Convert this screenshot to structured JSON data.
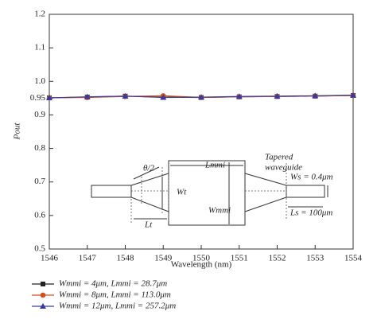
{
  "chart_data": {
    "type": "line",
    "x_label": "Wavelength (nm)",
    "y_label": "Pout",
    "x": [
      1546,
      1547,
      1548,
      1549,
      1550,
      1551,
      1552,
      1553,
      1554
    ],
    "xlim": [
      1546,
      1554
    ],
    "xticks": [
      1546,
      1547,
      1548,
      1549,
      1550,
      1551,
      1552,
      1553,
      1554
    ],
    "ylim": [
      0.5,
      1.2
    ],
    "yticks": [
      0.5,
      0.6,
      0.7,
      0.8,
      0.9,
      0.95,
      {
        "value": 1,
        "label": "1.0"
      },
      1.1,
      1.2
    ],
    "series": [
      {
        "name": "Wmmi = 4μm, Lmmi = 28.7μm",
        "color": "#222222",
        "marker": "square",
        "values": [
          0.951,
          0.953,
          0.956,
          0.953,
          0.952,
          0.954,
          0.955,
          0.956,
          0.958
        ]
      },
      {
        "name": "Wmmi = 8μm, Lmmi = 113.0μm",
        "color": "#d2501e",
        "marker": "circle",
        "values": [
          0.951,
          0.952,
          0.955,
          0.957,
          0.952,
          0.954,
          0.955,
          0.956,
          0.958
        ]
      },
      {
        "name": "Wmmi = 12μm, Lmmi = 257.2μm",
        "color": "#3a3a9a",
        "marker": "triangle",
        "values": [
          0.951,
          0.954,
          0.956,
          0.952,
          0.953,
          0.955,
          0.956,
          0.957,
          0.959
        ]
      }
    ],
    "annotations": [
      "θ/2",
      "Lmmi",
      "Tapered",
      "waveguide",
      "Wt",
      "Wmmi",
      "Ws = 0.4μm",
      "Lt",
      "Ls = 100μm"
    ]
  }
}
